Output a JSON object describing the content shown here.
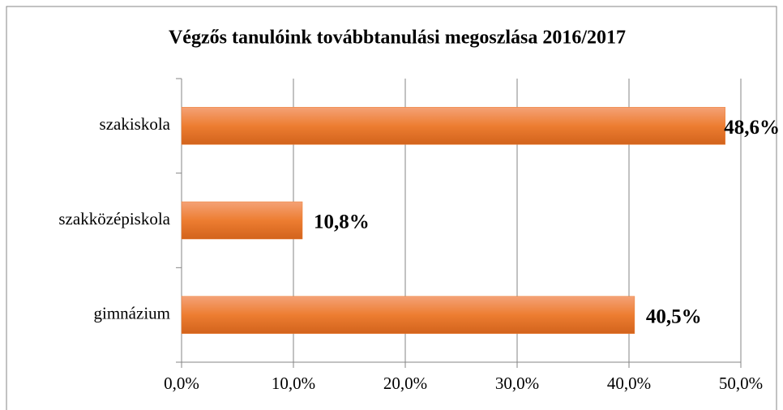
{
  "chart_data": {
    "type": "hbar",
    "title": "Végzős tanulóink továbbtanulási megoszlása 2016/2017",
    "categories": [
      "szakiskola",
      "szakközépiskola",
      "gimnázium"
    ],
    "values": [
      48.6,
      10.8,
      40.5
    ],
    "value_labels": [
      "48,6%",
      "10,8%",
      "40,5%"
    ],
    "color": "#ed7d31",
    "xlim": [
      0,
      50
    ],
    "xticks": [
      {
        "value": 0,
        "label": "0,0%"
      },
      {
        "value": 10,
        "label": "10,0%"
      },
      {
        "value": 20,
        "label": "20,0%"
      },
      {
        "value": 30,
        "label": "30,0%"
      },
      {
        "value": 40,
        "label": "40,0%"
      },
      {
        "value": 50,
        "label": "50,0%"
      }
    ],
    "grid": true
  }
}
